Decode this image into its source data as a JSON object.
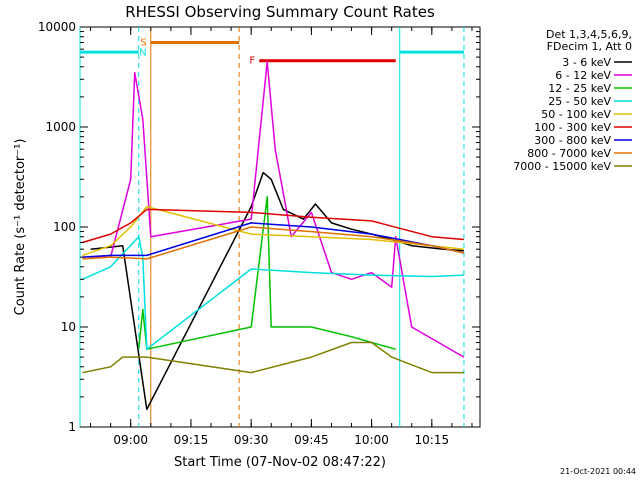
{
  "chart_data": {
    "type": "line",
    "title": "RHESSI Observing Summary Count Rates",
    "xlabel": "Start Time (07-Nov-02 08:47:22)",
    "ylabel": "Count Rate (s⁻¹ detector⁻¹)",
    "y_scale": "log",
    "xlim": [
      "08:47:22",
      "10:27:00"
    ],
    "ylim": [
      1,
      10000
    ],
    "x_ticks": [
      "09:00",
      "09:15",
      "09:30",
      "09:45",
      "10:00",
      "10:15"
    ],
    "y_ticks": [
      "1",
      "10",
      "100",
      "1000",
      "10000"
    ],
    "legend_header": [
      "Det 1,3,4,5,6,9,",
      "FDecim 1, Att 0"
    ],
    "legend_position": "right",
    "timestamp": "21-Oct-2021 00:44",
    "series": [
      {
        "name": "3 - 6 keV",
        "color": "#000000",
        "points": [
          [
            "08:50",
            60
          ],
          [
            "08:58",
            65
          ],
          [
            "09:04",
            1.5
          ],
          [
            "09:30",
            160
          ],
          [
            "09:33",
            350
          ],
          [
            "09:35",
            300
          ],
          [
            "09:38",
            150
          ],
          [
            "09:43",
            120
          ],
          [
            "09:46",
            170
          ],
          [
            "09:50",
            110
          ],
          [
            "09:55",
            95
          ],
          [
            "10:00",
            85
          ],
          [
            "10:05",
            75
          ],
          [
            "10:10",
            65
          ],
          [
            "10:18",
            60
          ],
          [
            "10:23",
            58
          ]
        ]
      },
      {
        "name": "6 - 12 keV",
        "color": "#e000e0",
        "points": [
          [
            "08:50",
            50
          ],
          [
            "08:55",
            50
          ],
          [
            "09:00",
            300
          ],
          [
            "09:01",
            3500
          ],
          [
            "09:03",
            1200
          ],
          [
            "09:05",
            80
          ],
          [
            "09:30",
            120
          ],
          [
            "09:34",
            4500
          ],
          [
            "09:36",
            600
          ],
          [
            "09:40",
            80
          ],
          [
            "09:45",
            140
          ],
          [
            "09:50",
            35
          ],
          [
            "09:55",
            30
          ],
          [
            "10:00",
            35
          ],
          [
            "10:05",
            25
          ],
          [
            "10:06",
            80
          ],
          [
            "10:10",
            10
          ],
          [
            "10:23",
            5
          ]
        ]
      },
      {
        "name": "12 - 25 keV",
        "color": "#00c000",
        "points": [
          [
            "09:02",
            6
          ],
          [
            "09:03",
            15
          ],
          [
            "09:04",
            6
          ],
          [
            "09:30",
            10
          ],
          [
            "09:34",
            200
          ],
          [
            "09:35",
            10
          ],
          [
            "09:45",
            10
          ],
          [
            "09:55",
            8
          ],
          [
            "10:00",
            7
          ],
          [
            "10:06",
            6
          ]
        ]
      },
      {
        "name": "25 - 50 keV",
        "color": "#00e0e0",
        "points": [
          [
            "08:48",
            30
          ],
          [
            "08:55",
            40
          ],
          [
            "09:02",
            80
          ],
          [
            "09:03",
            50
          ],
          [
            "09:04",
            6
          ],
          [
            "09:30",
            38
          ],
          [
            "09:45",
            35
          ],
          [
            "10:00",
            33
          ],
          [
            "10:15",
            32
          ],
          [
            "10:23",
            33
          ]
        ]
      },
      {
        "name": "50 - 100 keV",
        "color": "#e0c000",
        "points": [
          [
            "08:48",
            52
          ],
          [
            "08:55",
            65
          ],
          [
            "09:00",
            100
          ],
          [
            "09:04",
            160
          ],
          [
            "09:30",
            85
          ],
          [
            "09:45",
            80
          ],
          [
            "10:00",
            75
          ],
          [
            "10:15",
            65
          ],
          [
            "10:23",
            60
          ]
        ]
      },
      {
        "name": "100 - 300 keV",
        "color": "#e00000",
        "points": [
          [
            "08:48",
            70
          ],
          [
            "08:55",
            85
          ],
          [
            "09:00",
            110
          ],
          [
            "09:04",
            150
          ],
          [
            "09:30",
            140
          ],
          [
            "09:45",
            125
          ],
          [
            "10:00",
            115
          ],
          [
            "10:15",
            80
          ],
          [
            "10:23",
            75
          ]
        ]
      },
      {
        "name": "300 - 800 keV",
        "color": "#0000e0",
        "points": [
          [
            "08:48",
            50
          ],
          [
            "08:55",
            52
          ],
          [
            "09:04",
            52
          ],
          [
            "09:30",
            110
          ],
          [
            "09:45",
            100
          ],
          [
            "10:00",
            85
          ],
          [
            "10:15",
            65
          ],
          [
            "10:23",
            55
          ]
        ]
      },
      {
        "name": "800 - 7000 keV",
        "color": "#e07000",
        "points": [
          [
            "08:48",
            48
          ],
          [
            "08:55",
            50
          ],
          [
            "09:04",
            48
          ],
          [
            "09:30",
            100
          ],
          [
            "09:45",
            90
          ],
          [
            "10:00",
            80
          ],
          [
            "10:15",
            65
          ],
          [
            "10:23",
            55
          ]
        ]
      },
      {
        "name": "7000 - 15000 keV",
        "color": "#808000",
        "points": [
          [
            "08:48",
            3.5
          ],
          [
            "08:55",
            4
          ],
          [
            "08:58",
            5
          ],
          [
            "09:04",
            5
          ],
          [
            "09:30",
            3.5
          ],
          [
            "09:45",
            5
          ],
          [
            "09:55",
            7
          ],
          [
            "10:00",
            7
          ],
          [
            "10:05",
            5
          ],
          [
            "10:15",
            3.5
          ],
          [
            "10:23",
            3.5
          ]
        ]
      }
    ],
    "flags": [
      {
        "label": "",
        "color": "#00e0e0",
        "from": "08:47:22",
        "to": "09:02",
        "y": 5600
      },
      {
        "label": "",
        "color": "#00e0e0",
        "from": "10:07",
        "to": "10:23",
        "y": 5600
      },
      {
        "label": "S",
        "color": "#e07000",
        "from": "09:05",
        "to": "09:27",
        "y": 7000
      },
      {
        "label": "F",
        "color": "#e00000",
        "from": "09:32",
        "to": "10:06",
        "y": 4600
      },
      {
        "label": "N",
        "color": "#00e0e0",
        "from": "",
        "to": "",
        "y": 0
      }
    ],
    "markers": [
      {
        "time": "08:47:22",
        "color": "#00e0e0",
        "style": "solid"
      },
      {
        "time": "09:02",
        "color": "#00e0e0",
        "style": "dashed"
      },
      {
        "time": "09:05",
        "color": "#e07000",
        "style": "solid"
      },
      {
        "time": "09:27",
        "color": "#e07000",
        "style": "dashed"
      },
      {
        "time": "10:07",
        "color": "#00e0e0",
        "style": "solid"
      },
      {
        "time": "10:23",
        "color": "#00e0e0",
        "style": "dashed"
      }
    ]
  }
}
